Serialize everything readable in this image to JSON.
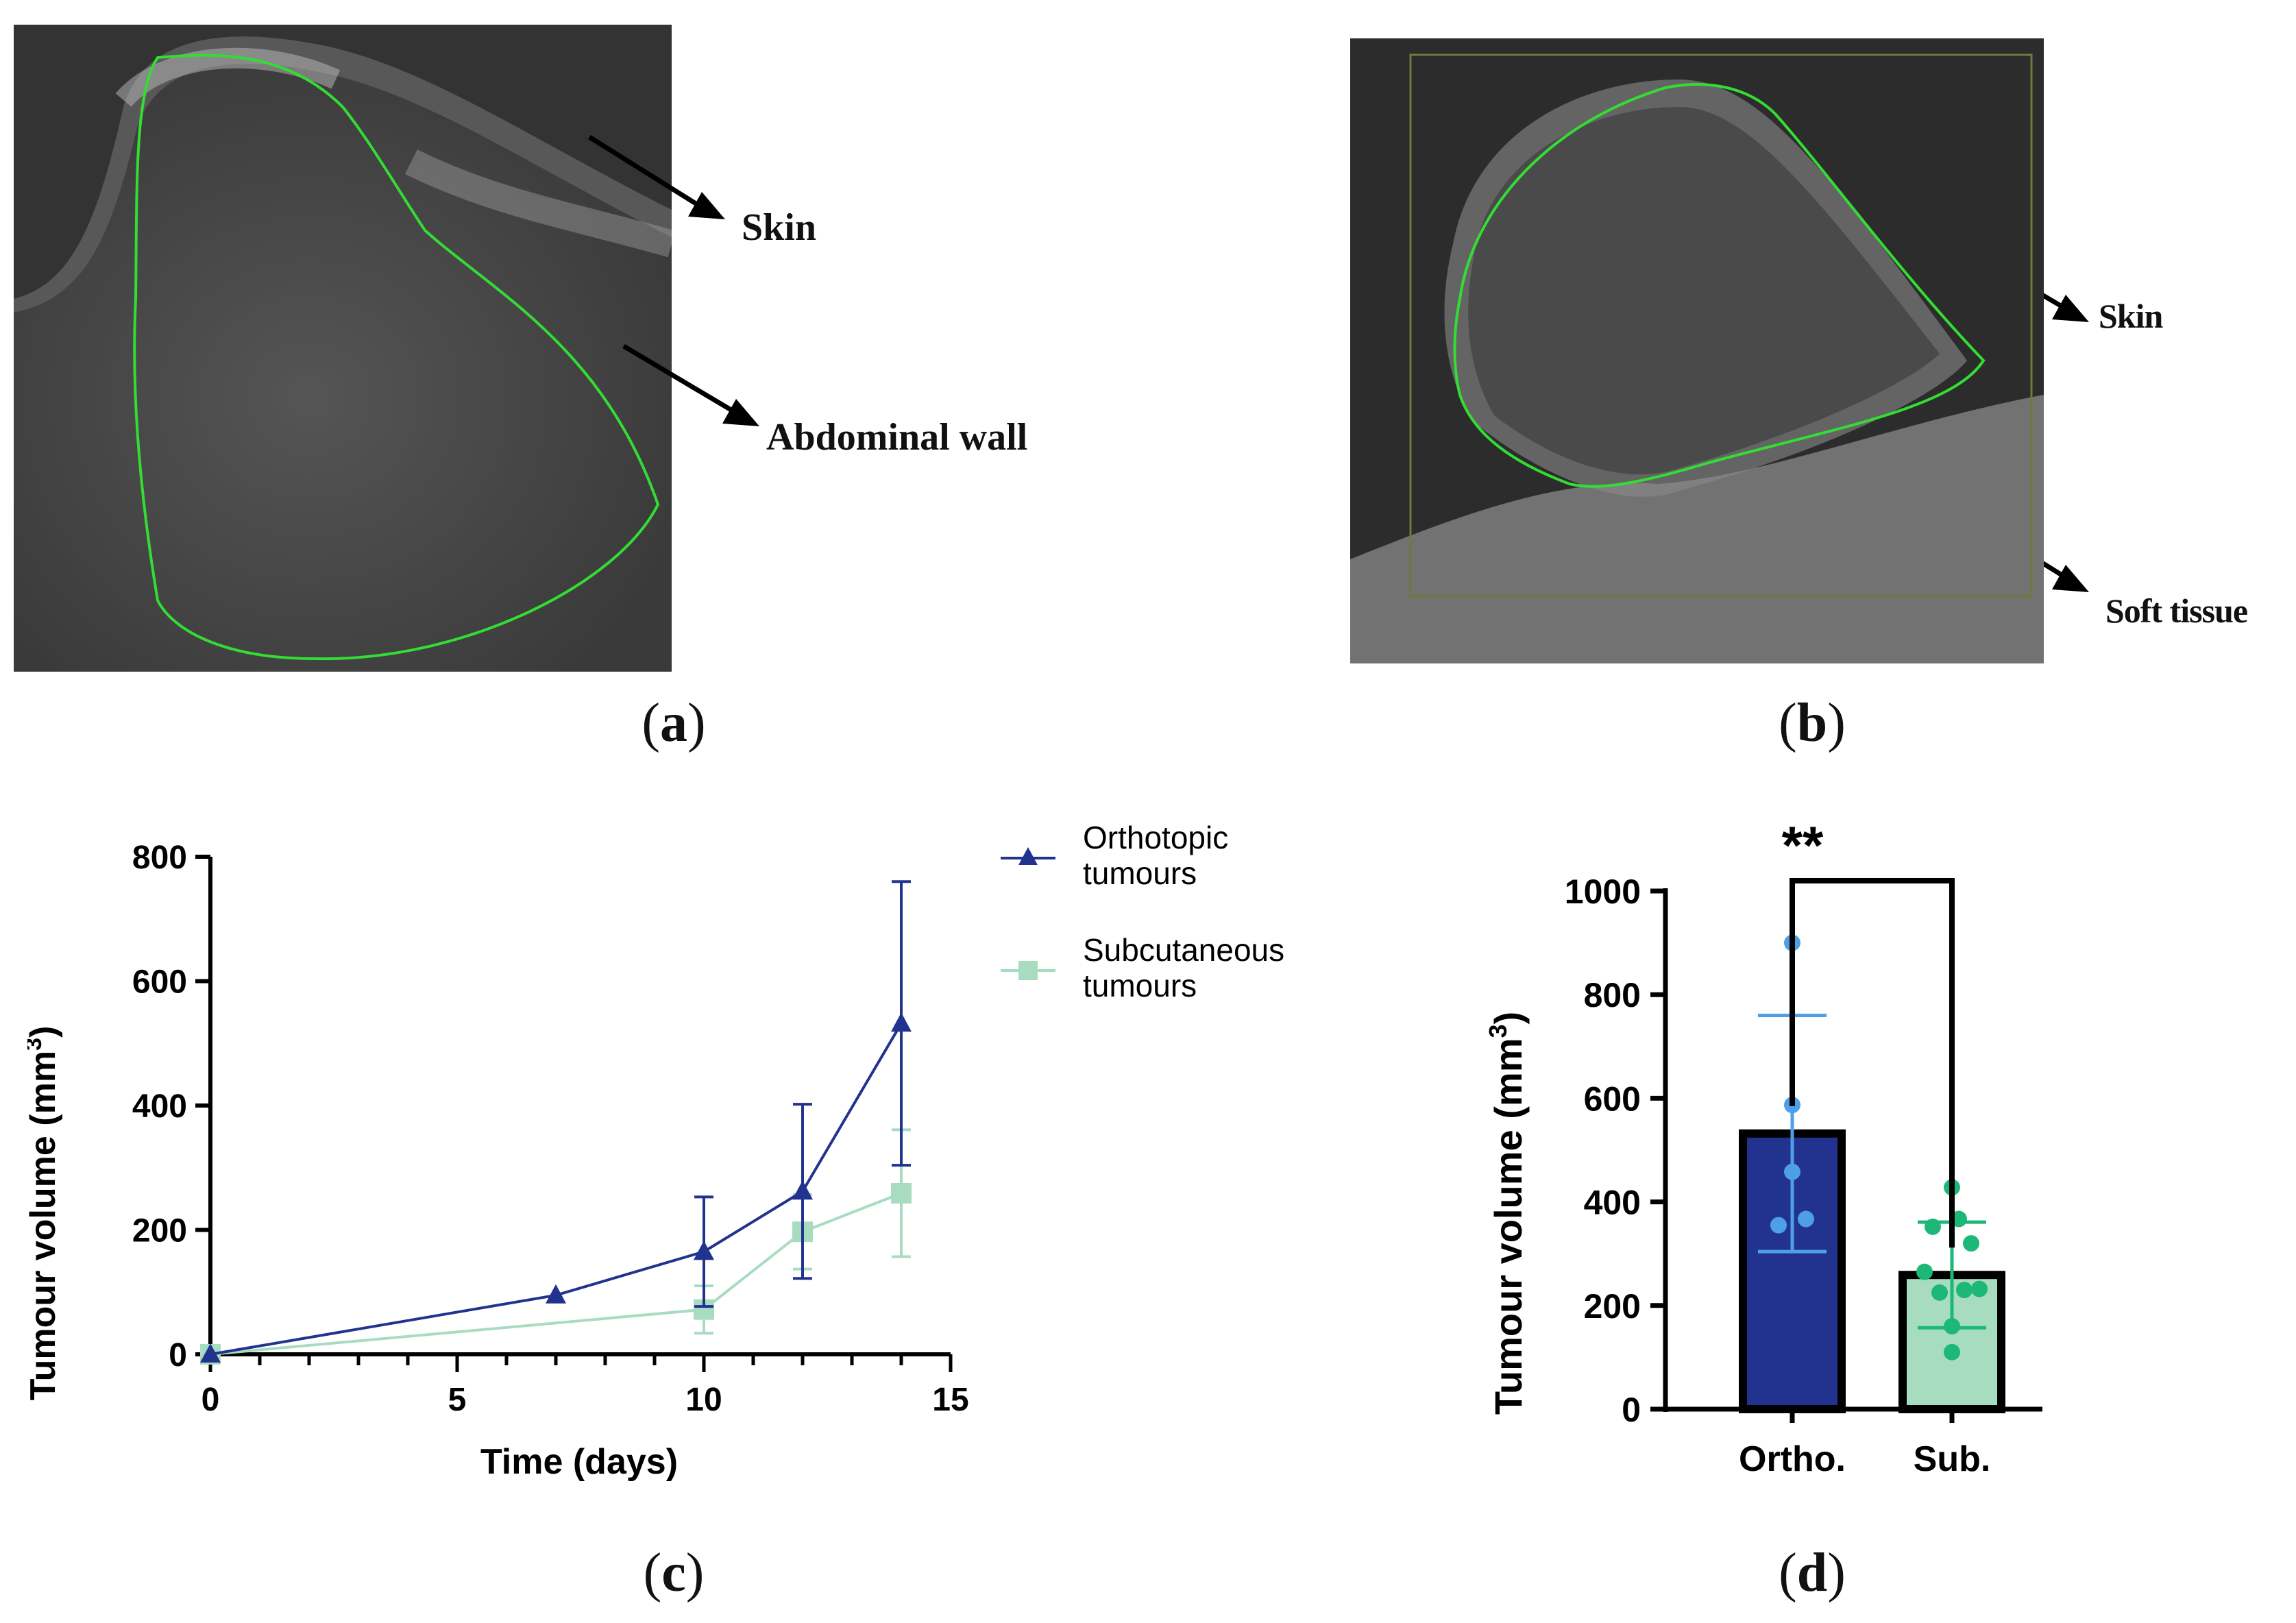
{
  "panels": {
    "a": {
      "label": "a",
      "annotations": [
        "Skin",
        "Abdominal wall"
      ]
    },
    "b": {
      "label": "b",
      "annotations": [
        "Skin",
        "Soft tissue"
      ]
    },
    "c": {
      "label": "c"
    },
    "d": {
      "label": "d"
    }
  },
  "colors": {
    "orthotopic": "#22338f",
    "subcutaneous": "#a8dcc0",
    "ortho_points": "#4f9ee8",
    "sub_points": "#1db877",
    "outline": "#33dd33"
  },
  "chart_data": [
    {
      "type": "line",
      "title": "",
      "xlabel": "Time (days)",
      "ylabel": "Tumour volume (mm",
      "ylabel_sup": "3",
      "ylabel_close": ")",
      "xlim": [
        0,
        15
      ],
      "ylim": [
        0,
        800
      ],
      "xticks": [
        "0",
        "5",
        "10",
        "15"
      ],
      "yticks": [
        "0",
        "200",
        "400",
        "600",
        "800"
      ],
      "legend": "right",
      "series": [
        {
          "name_line1": "Orthotopic",
          "name_line2": "tumours",
          "marker": "triangle",
          "x": [
            0,
            7,
            10,
            12,
            14
          ],
          "y": [
            0,
            95,
            165,
            262,
            532
          ],
          "err": [
            0,
            0,
            88,
            140,
            228
          ]
        },
        {
          "name_line1": "Subcutaneous",
          "name_line2": "tumours",
          "marker": "square",
          "x": [
            0,
            10,
            12,
            14
          ],
          "y": [
            0,
            72,
            197,
            259
          ],
          "err": [
            0,
            38,
            60,
            102
          ]
        }
      ]
    },
    {
      "type": "bar",
      "title": "",
      "xlabel": "",
      "ylabel": "Tumour volume  (mm",
      "ylabel_sup": "3",
      "ylabel_close": ")",
      "ylim": [
        0,
        1000
      ],
      "yticks": [
        "0",
        "200",
        "400",
        "600",
        "800",
        "1000"
      ],
      "categories": [
        "Ortho.",
        "Sub."
      ],
      "values": [
        532,
        259
      ],
      "sd": [
        228,
        102
      ],
      "points": [
        [
          900,
          587,
          458,
          367,
          355
        ],
        [
          428,
          367,
          352,
          320,
          265,
          232,
          225,
          230,
          160,
          110
        ]
      ],
      "significance": "**"
    }
  ]
}
